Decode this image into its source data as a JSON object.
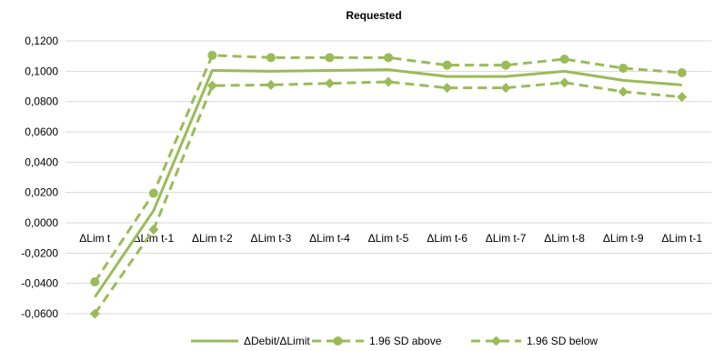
{
  "chart_data": {
    "type": "line",
    "title": "Requested",
    "categories": [
      "ΔLim t",
      "ΔLim t-1",
      "ΔLim t-2",
      "ΔLim t-3",
      "ΔLim t-4",
      "ΔLim t-5",
      "ΔLim t-6",
      "ΔLim t-7",
      "ΔLim t-8",
      "ΔLim t-9",
      "ΔLim t-1"
    ],
    "ylim": [
      -0.06,
      0.12
    ],
    "yticks": [
      "0,1200",
      "0,1000",
      "0,0800",
      "0,0600",
      "0,0400",
      "0,0200",
      "0,0000",
      "-0,0200",
      "-0,0400",
      "-0,0600"
    ],
    "grid": true,
    "legend_position": "bottom",
    "series": [
      {
        "name": "ΔDebit/ΔLimit",
        "style": "solid",
        "marker": "none",
        "color": "#9bbb59",
        "values": [
          -0.049,
          0.008,
          0.1005,
          0.1,
          0.1005,
          0.101,
          0.0965,
          0.0965,
          0.1,
          0.094,
          0.091
        ]
      },
      {
        "name": "1.96 SD above",
        "style": "dashed",
        "marker": "circle",
        "color": "#9bbb59",
        "values": [
          -0.039,
          0.0195,
          0.1105,
          0.109,
          0.109,
          0.109,
          0.104,
          0.104,
          0.108,
          0.102,
          0.099
        ]
      },
      {
        "name": "1.96 SD below",
        "style": "dashed",
        "marker": "diamond",
        "color": "#9bbb59",
        "values": [
          -0.06,
          -0.0045,
          0.0905,
          0.091,
          0.092,
          0.093,
          0.089,
          0.089,
          0.0925,
          0.0865,
          0.083
        ]
      }
    ]
  }
}
